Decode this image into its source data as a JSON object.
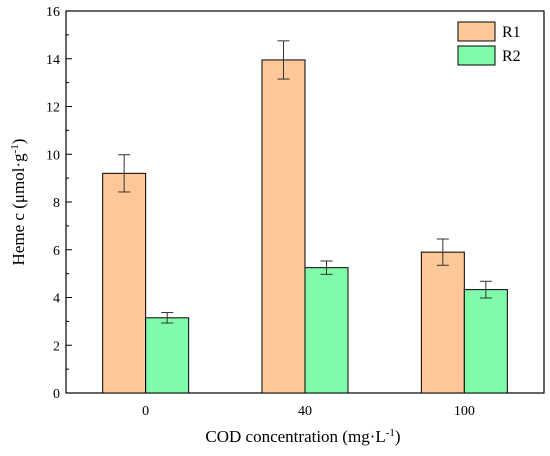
{
  "chart_data": {
    "type": "bar",
    "categories": [
      "0",
      "40",
      "100"
    ],
    "series": [
      {
        "name": "R1",
        "color": "#FDC797",
        "values": [
          9.2,
          13.95,
          5.9
        ],
        "errors": [
          0.78,
          0.8,
          0.55
        ]
      },
      {
        "name": "R2",
        "color": "#7FFBAA",
        "values": [
          3.15,
          5.25,
          4.33
        ],
        "errors": [
          0.22,
          0.28,
          0.35
        ]
      }
    ],
    "xlabel": "COD concentration (mg·L",
    "xlabel_sup": "-1",
    "xlabel_end": ")",
    "ylabel": "Heme c (μmol·g",
    "ylabel_sup": "-1",
    "ylabel_end": ")",
    "ylim": [
      0,
      16
    ],
    "yticks": [
      "0",
      "2",
      "4",
      "6",
      "8",
      "10",
      "12",
      "14",
      "16"
    ],
    "legend": "top-right",
    "grid": false
  }
}
